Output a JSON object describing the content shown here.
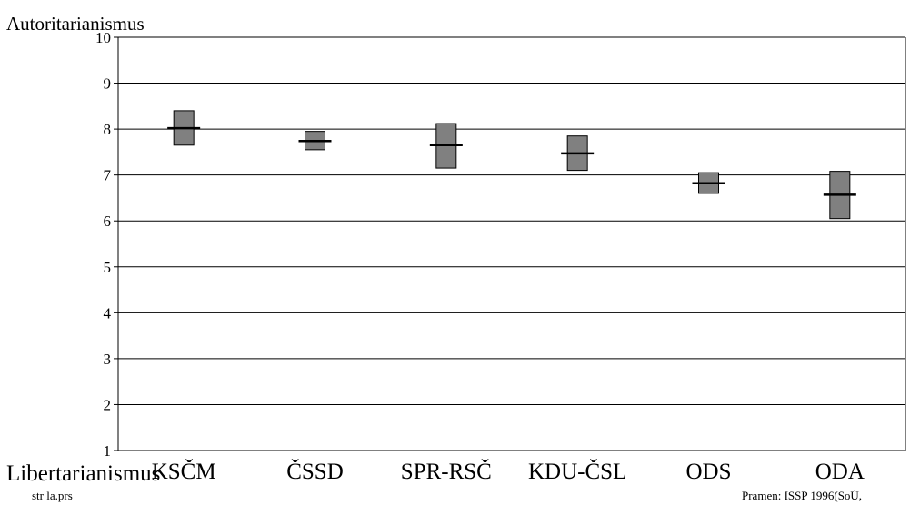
{
  "labels": {
    "top": "Autoritarianismus",
    "bottom": "Libertarianismus",
    "footer_left": "str  la.prs",
    "footer_right": "Pramen: ISSP 1996(SoÚ,"
  },
  "colors": {
    "box_fill": "#808080",
    "stroke": "#000000",
    "background": "#ffffff"
  },
  "chart_data": {
    "type": "range-box",
    "title": "",
    "xlabel": "",
    "ylabel": "",
    "categories": [
      "KSČM",
      "ČSSD",
      "SPR-RSČ",
      "KDU-ČSL",
      "ODS",
      "ODA"
    ],
    "series": [
      {
        "low": [
          7.65,
          7.55,
          7.15,
          7.1,
          6.6,
          6.05
        ]
      },
      {
        "high": [
          8.4,
          7.95,
          8.12,
          7.85,
          7.05,
          7.08
        ]
      },
      {
        "mean": [
          8.02,
          7.74,
          7.65,
          7.47,
          6.82,
          6.57
        ]
      }
    ],
    "ylim": [
      1,
      10
    ],
    "yticks": [
      1,
      2,
      3,
      4,
      5,
      6,
      7,
      8,
      9,
      10
    ],
    "grid": true
  }
}
